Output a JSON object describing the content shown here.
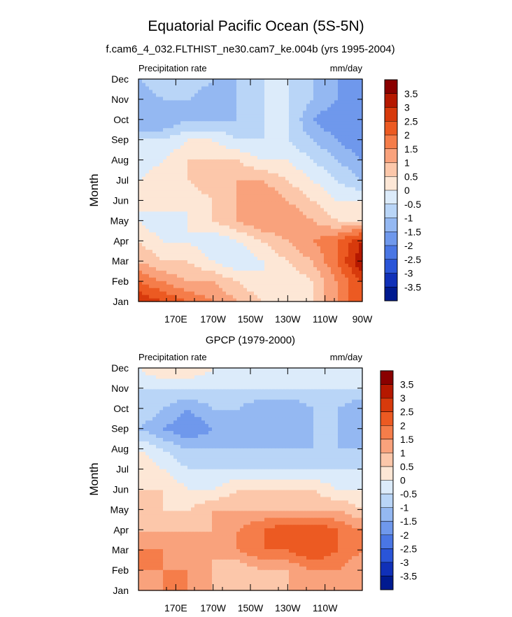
{
  "figure": {
    "title": "Equatorial Pacific Ocean (5S-5N)"
  },
  "chart_data": [
    {
      "type": "heatmap",
      "title": "f.cam6_4_032.FLTHIST_ne30.cam7_ke.004b (yrs 1995-2004)",
      "left_label": "Precipitation rate",
      "right_label": "mm/day",
      "ylabel": "Month",
      "xlabel": "",
      "x_ticks": [
        "170E",
        "170W",
        "150W",
        "130W",
        "110W",
        "90W"
      ],
      "y_ticks": [
        "Jan",
        "Feb",
        "Mar",
        "Apr",
        "May",
        "Jun",
        "Jul",
        "Aug",
        "Sep",
        "Oct",
        "Nov",
        "Dec"
      ],
      "x_range": [
        150,
        270
      ],
      "grid_x": [
        150,
        165,
        180,
        195,
        210,
        225,
        240,
        255,
        270
      ],
      "grid_x_count": 9,
      "colorbar_labels": [
        "3.5",
        "3",
        "2.5",
        "2",
        "1.5",
        "1",
        "0.5",
        "0",
        "-0.5",
        "-1",
        "-1.5",
        "-2",
        "-2.5",
        "-3",
        "-3.5"
      ],
      "z": [
        [
          3.0,
          2.5,
          2.0,
          1.5,
          1.0,
          0.5,
          0.0,
          0.5,
          1.5,
          2.5
        ],
        [
          2.0,
          1.5,
          1.0,
          1.0,
          0.5,
          0.0,
          0.0,
          0.5,
          1.5,
          2.5
        ],
        [
          1.0,
          0.5,
          0.5,
          0.0,
          -0.5,
          0.0,
          0.5,
          1.0,
          2.0,
          3.5
        ],
        [
          0.5,
          0.0,
          0.0,
          -0.5,
          0.0,
          0.5,
          1.0,
          1.5,
          2.0,
          3.0
        ],
        [
          0.0,
          -0.5,
          0.0,
          0.5,
          1.0,
          1.5,
          1.5,
          1.0,
          0.5,
          0.5
        ],
        [
          0.0,
          0.5,
          0.0,
          0.5,
          1.0,
          1.5,
          1.0,
          0.5,
          0.0,
          0.0
        ],
        [
          0.0,
          0.5,
          0.5,
          1.0,
          1.0,
          1.0,
          0.5,
          0.0,
          -0.5,
          -1.0
        ],
        [
          -0.5,
          0.0,
          0.5,
          0.5,
          0.5,
          0.0,
          0.0,
          -0.5,
          -1.0,
          -1.5
        ],
        [
          -0.5,
          -0.5,
          0.0,
          0.0,
          -0.5,
          -0.5,
          -0.5,
          -1.0,
          -1.5,
          -2.0
        ],
        [
          -1.5,
          -1.5,
          -1.0,
          -1.0,
          -1.0,
          -0.5,
          -0.5,
          -1.5,
          -2.0,
          -2.0
        ],
        [
          -1.5,
          -1.0,
          -1.0,
          -1.5,
          -1.0,
          -0.5,
          -0.5,
          -1.0,
          -1.5,
          -2.0
        ],
        [
          -1.0,
          -0.5,
          -0.5,
          -1.0,
          -1.0,
          -0.5,
          -0.5,
          -1.0,
          -1.5,
          -2.0
        ]
      ]
    },
    {
      "type": "heatmap",
      "title": "GPCP (1979-2000)",
      "left_label": "Precipitation rate",
      "right_label": "mm/day",
      "ylabel": "Month",
      "xlabel": "",
      "x_ticks": [
        "170E",
        "170W",
        "150W",
        "130W",
        "110W"
      ],
      "y_ticks": [
        "Jan",
        "Feb",
        "Mar",
        "Apr",
        "May",
        "Jun",
        "Jul",
        "Aug",
        "Sep",
        "Oct",
        "Nov",
        "Dec"
      ],
      "x_range": [
        150,
        270
      ],
      "grid_x": [
        150,
        165,
        180,
        195,
        210,
        225,
        240,
        255,
        270
      ],
      "grid_x_count": 9,
      "colorbar_labels": [
        "3.5",
        "3",
        "2.5",
        "2",
        "1.5",
        "1",
        "0.5",
        "0",
        "-0.5",
        "-1",
        "-1.5",
        "-2",
        "-2.5",
        "-3",
        "-3.5"
      ],
      "z": [
        [
          1.0,
          1.5,
          1.5,
          1.0,
          0.5,
          0.5,
          1.0,
          1.0,
          1.0,
          1.0
        ],
        [
          1.5,
          1.5,
          1.5,
          1.0,
          0.5,
          1.0,
          1.0,
          1.5,
          1.5,
          1.0
        ],
        [
          1.5,
          1.5,
          1.0,
          1.0,
          1.5,
          2.0,
          2.0,
          2.5,
          2.0,
          1.5
        ],
        [
          1.0,
          1.0,
          1.0,
          1.0,
          1.5,
          2.0,
          2.5,
          2.5,
          2.0,
          1.5
        ],
        [
          0.5,
          0.5,
          0.5,
          1.0,
          1.0,
          1.0,
          1.0,
          1.0,
          1.0,
          0.5
        ],
        [
          0.5,
          0.5,
          0.0,
          0.0,
          0.5,
          0.5,
          0.5,
          0.5,
          0.0,
          0.0
        ],
        [
          0.5,
          0.0,
          -0.5,
          -0.5,
          -0.5,
          -0.5,
          -0.5,
          -0.5,
          -0.5,
          -0.5
        ],
        [
          0.0,
          -0.5,
          -1.0,
          -1.0,
          -1.0,
          -1.0,
          -1.0,
          -1.0,
          -1.0,
          -1.0
        ],
        [
          -1.0,
          -1.5,
          -2.0,
          -1.5,
          -1.0,
          -1.5,
          -1.5,
          -1.0,
          -1.0,
          -1.5
        ],
        [
          -0.5,
          -1.0,
          -1.5,
          -1.0,
          -1.0,
          -1.5,
          -1.5,
          -1.0,
          -1.0,
          -1.5
        ],
        [
          -0.5,
          -0.5,
          -0.5,
          -0.5,
          -0.5,
          -0.5,
          -0.5,
          -0.5,
          -0.5,
          -0.5
        ],
        [
          0.0,
          0.5,
          0.5,
          0.0,
          0.0,
          0.0,
          -0.5,
          0.0,
          0.0,
          0.0
        ]
      ]
    }
  ]
}
